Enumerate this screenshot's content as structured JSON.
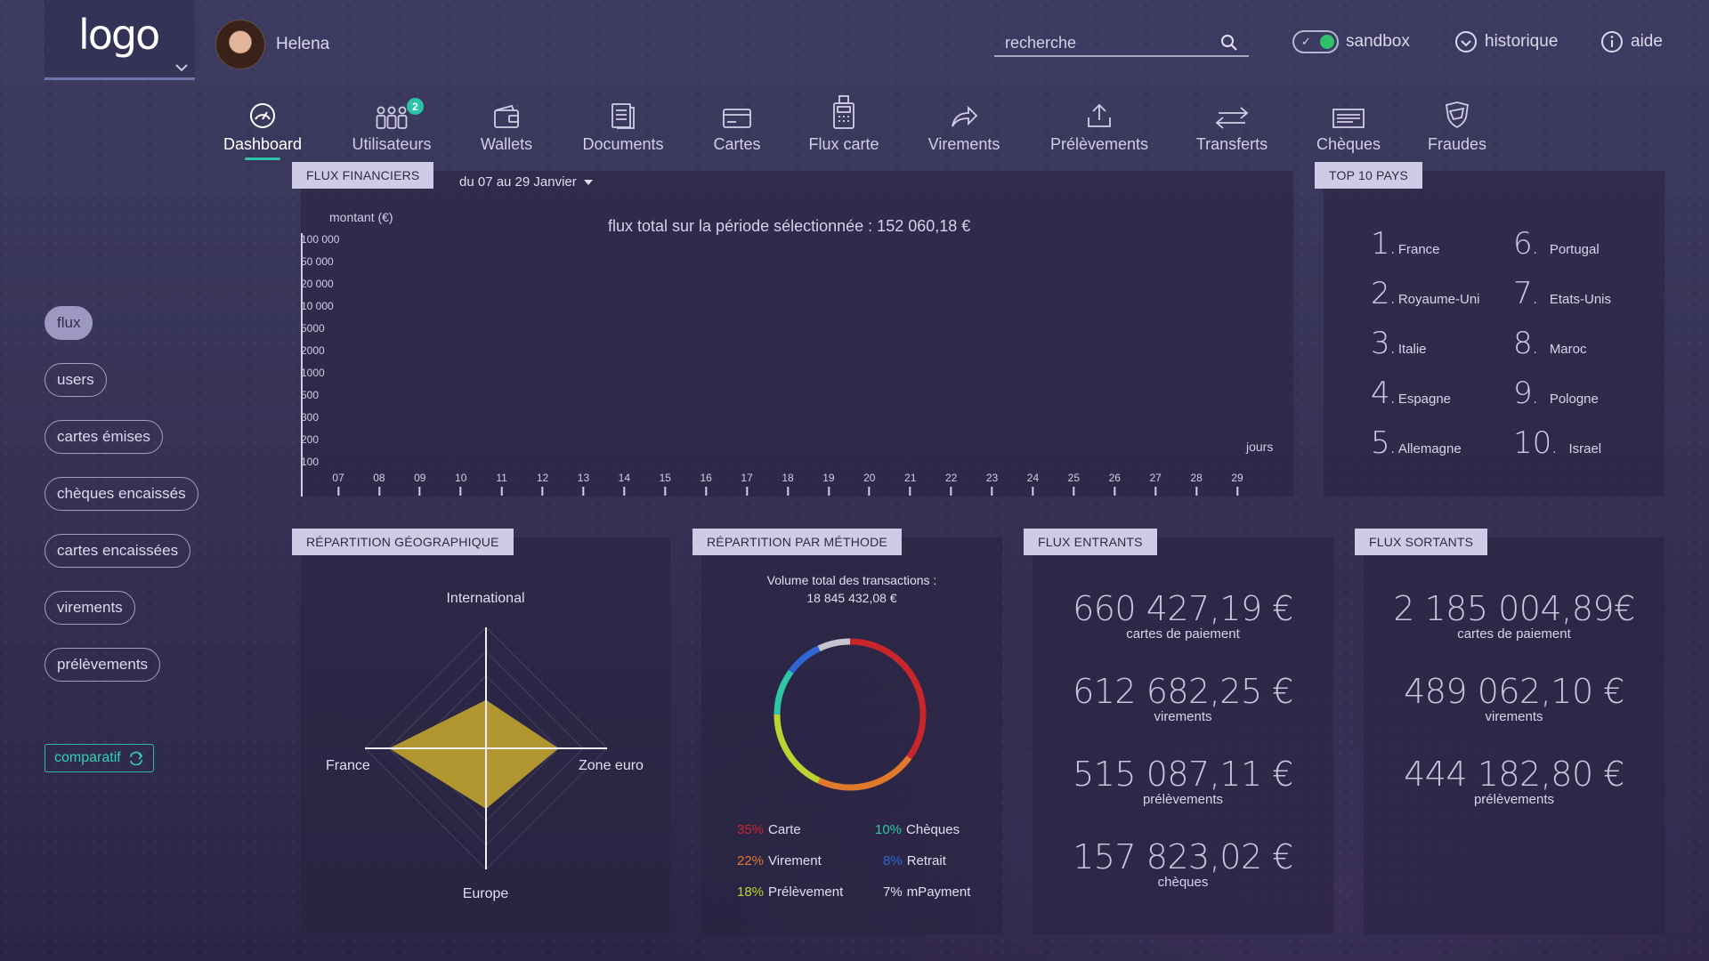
{
  "header": {
    "logo_text": "logo",
    "user_name": "Helena",
    "search_placeholder": "recherche",
    "sandbox_label": "sandbox",
    "history_label": "historique",
    "help_label": "aide"
  },
  "nav": {
    "items": [
      {
        "label": "Dashboard",
        "icon": "gauge-icon"
      },
      {
        "label": "Utilisateurs",
        "icon": "users-icon",
        "badge": "2"
      },
      {
        "label": "Wallets",
        "icon": "wallet-icon"
      },
      {
        "label": "Documents",
        "icon": "document-icon"
      },
      {
        "label": "Cartes",
        "icon": "card-icon"
      },
      {
        "label": "Flux carte",
        "icon": "card-terminal-icon"
      },
      {
        "label": "Virements",
        "icon": "share-arrow-icon"
      },
      {
        "label": "Prélèvements",
        "icon": "upload-icon"
      },
      {
        "label": "Transferts",
        "icon": "transfer-arrows-icon"
      },
      {
        "label": "Chèques",
        "icon": "cheque-icon"
      },
      {
        "label": "Fraudes",
        "icon": "shield-icon"
      }
    ]
  },
  "sidebar": {
    "items": [
      {
        "label": "flux"
      },
      {
        "label": "users"
      },
      {
        "label": "cartes émises"
      },
      {
        "label": "chèques encaissés"
      },
      {
        "label": "cartes encaissées"
      },
      {
        "label": "virements"
      },
      {
        "label": "prélèvements"
      }
    ],
    "compare_label": "comparatif"
  },
  "flux_financiers": {
    "tab_label": "FLUX FINANCIERS",
    "period": "du 07 au 29 Janvier",
    "total_text": "flux total sur la période sélectionnée : 152 060,18 €",
    "y_axis_label": "montant (€)",
    "x_axis_label": "jours",
    "y_ticks": [
      "100 000",
      "50 000",
      "20 000",
      "10 000",
      "5000",
      "2000",
      "1000",
      "500",
      "300",
      "200",
      "100"
    ],
    "x_ticks": [
      "07",
      "08",
      "09",
      "10",
      "11",
      "12",
      "13",
      "14",
      "15",
      "16",
      "17",
      "18",
      "19",
      "20",
      "21",
      "22",
      "23",
      "24",
      "25",
      "26",
      "27",
      "28",
      "29"
    ]
  },
  "top_pays": {
    "tab_label": "TOP 10 PAYS",
    "countries": [
      {
        "rank": "1",
        "name": "France"
      },
      {
        "rank": "2",
        "name": "Royaume-Uni"
      },
      {
        "rank": "3",
        "name": "Italie"
      },
      {
        "rank": "4",
        "name": "Espagne"
      },
      {
        "rank": "5",
        "name": "Allemagne"
      },
      {
        "rank": "6",
        "name": "Portugal"
      },
      {
        "rank": "7",
        "name": "Etats-Unis"
      },
      {
        "rank": "8",
        "name": "Maroc"
      },
      {
        "rank": "9",
        "name": "Pologne"
      },
      {
        "rank": "10",
        "name": "Israel"
      }
    ]
  },
  "repartition_geo": {
    "tab_label": "RÉPARTITION GÉOGRAPHIQUE",
    "axes": {
      "top": "International",
      "left": "France",
      "right": "Zone euro",
      "bottom": "Europe"
    },
    "values": {
      "top": 0.4,
      "left": 0.8,
      "right": 0.6,
      "bottom": 0.5
    },
    "fill_color": "#c9a92a"
  },
  "repartition_methode": {
    "tab_label": "RÉPARTITION PAR MÉTHODE",
    "total_line1": "Volume total des transactions :",
    "total_line2": "18 845 432,08 €",
    "segments": [
      {
        "pct": "35%",
        "label": "Carte",
        "value": 35,
        "color": "#c8262b"
      },
      {
        "pct": "22%",
        "label": "Virement",
        "value": 22,
        "color": "#e07a2a"
      },
      {
        "pct": "18%",
        "label": "Prélèvement",
        "value": 18,
        "color": "#bcd331"
      },
      {
        "pct": "10%",
        "label": "Chèques",
        "value": 10,
        "color": "#2ec7a4"
      },
      {
        "pct": "8%",
        "label": "Retrait",
        "value": 8,
        "color": "#3066d6"
      },
      {
        "pct": "7%",
        "label": "mPayment",
        "value": 7,
        "color": "#c7c4cf"
      }
    ]
  },
  "flux_entrants": {
    "tab_label": "FLUX ENTRANTS",
    "rows": [
      {
        "amount": "660 427,19 €",
        "caption": "cartes de paiement"
      },
      {
        "amount": "612 682,25 €",
        "caption": "virements"
      },
      {
        "amount": "515 087,11 €",
        "caption": "prélèvements"
      },
      {
        "amount": "157 823,02 €",
        "caption": "chèques"
      }
    ]
  },
  "flux_sortants": {
    "tab_label": "FLUX SORTANTS",
    "rows": [
      {
        "amount": "2 185 004,89€",
        "caption": "cartes de paiement"
      },
      {
        "amount": "489 062,10 €",
        "caption": "virements"
      },
      {
        "amount": "444 182,80 €",
        "caption": "prélèvements"
      }
    ]
  },
  "colors": {
    "accent": "#2fc3a8",
    "tab_bg": "#cfcbe6",
    "sandbox_on": "#2fc26b"
  }
}
